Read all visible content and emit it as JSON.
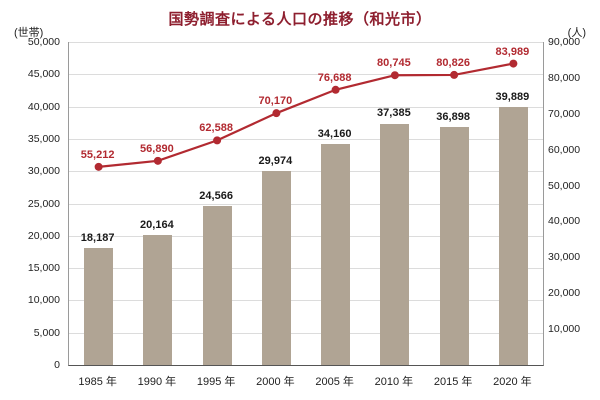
{
  "chart_data": {
    "type": "bar",
    "title": "国勢調査による人口の推移（和光市）",
    "categories": [
      "1985 年",
      "1990 年",
      "1995 年",
      "2000 年",
      "2005 年",
      "2010 年",
      "2015 年",
      "2020 年"
    ],
    "series": [
      {
        "name": "世帯",
        "type": "bar",
        "axis": "left",
        "values": [
          18187,
          20164,
          24566,
          29974,
          34160,
          37385,
          36898,
          39889
        ],
        "color": "#b0a494"
      },
      {
        "name": "人",
        "type": "line",
        "axis": "right",
        "values": [
          55212,
          56890,
          62588,
          70170,
          76688,
          80745,
          80826,
          83989
        ],
        "color": "#b22a31"
      }
    ],
    "left_axis": {
      "unit": "(世帯)",
      "min": 0,
      "max": 50000,
      "step": 5000
    },
    "right_axis": {
      "unit": "(人)",
      "min": 0,
      "max": 90000,
      "step": 10000
    },
    "grid": true,
    "legend": "none"
  },
  "colors": {
    "title": "#8e1f2f",
    "bar": "#b0a494",
    "line": "#b22a31",
    "bar_label": "#1a1a1a",
    "gridline": "#dcdcdc"
  }
}
